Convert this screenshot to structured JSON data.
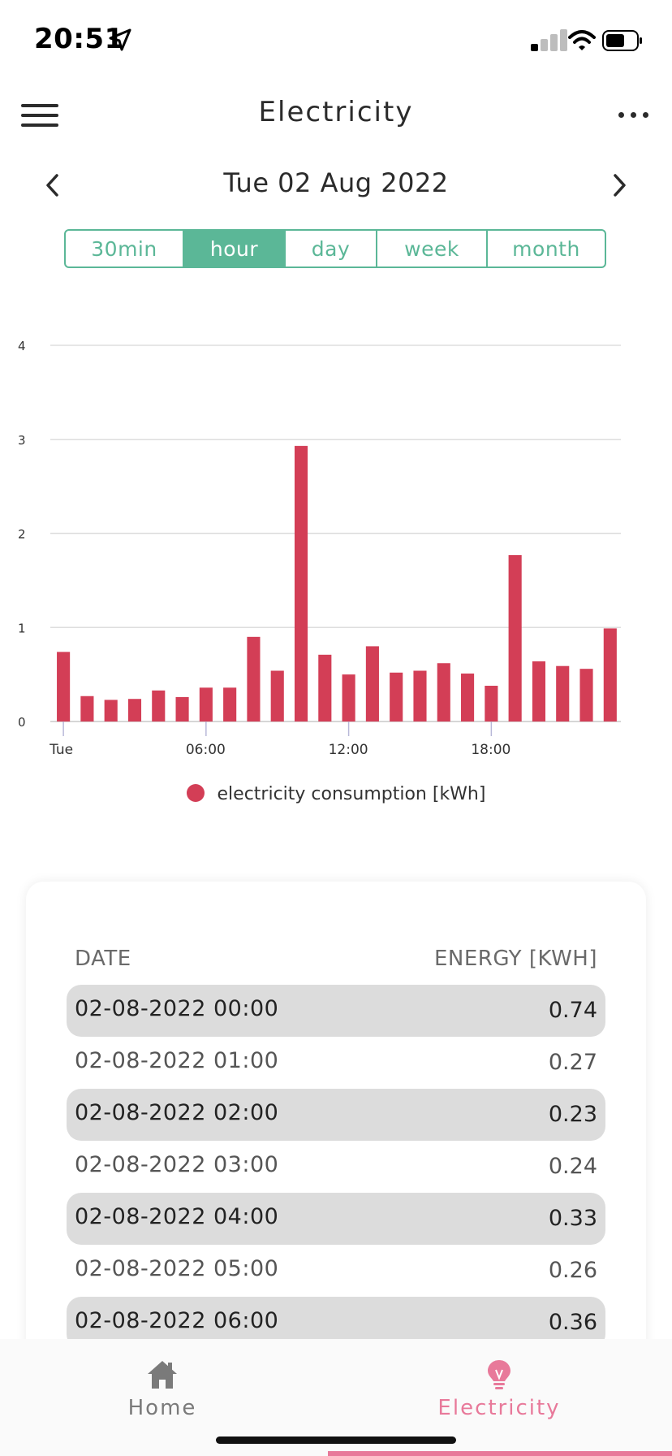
{
  "status_bar": {
    "time": "20:51",
    "location_icon": "location-arrow-icon",
    "signal_icon": "cell-signal-icon",
    "wifi_icon": "wifi-icon",
    "battery_icon": "battery-icon"
  },
  "header": {
    "title": "Electricity",
    "menu_icon": "hamburger-menu-icon",
    "more_icon": "more-options-icon"
  },
  "date_nav": {
    "date": "Tue 02 Aug 2022",
    "prev_icon": "chevron-left-icon",
    "next_icon": "chevron-right-icon"
  },
  "tabs": [
    {
      "label": "30min",
      "active": false
    },
    {
      "label": "hour",
      "active": true
    },
    {
      "label": "day",
      "active": false
    },
    {
      "label": "week",
      "active": false
    },
    {
      "label": "month",
      "active": false
    }
  ],
  "chart_data": {
    "type": "bar",
    "x": [
      "00:00",
      "01:00",
      "02:00",
      "03:00",
      "04:00",
      "05:00",
      "06:00",
      "07:00",
      "08:00",
      "09:00",
      "10:00",
      "11:00",
      "12:00",
      "13:00",
      "14:00",
      "15:00",
      "16:00",
      "17:00",
      "18:00",
      "19:00",
      "20:00",
      "21:00",
      "22:00",
      "23:00"
    ],
    "x_tick_labels": [
      {
        "at": "00:00",
        "label": "Tue"
      },
      {
        "at": "06:00",
        "label": "06:00"
      },
      {
        "at": "12:00",
        "label": "12:00"
      },
      {
        "at": "18:00",
        "label": "18:00"
      }
    ],
    "series": [
      {
        "name": "electricity consumption [kWh]",
        "color": "#d33e56",
        "values": [
          0.74,
          0.27,
          0.23,
          0.24,
          0.33,
          0.26,
          0.36,
          0.36,
          0.9,
          0.54,
          2.93,
          0.71,
          0.5,
          0.8,
          0.52,
          0.54,
          0.62,
          0.51,
          0.38,
          1.77,
          0.64,
          0.59,
          0.56,
          0.99
        ]
      }
    ],
    "ylim": [
      0,
      4
    ],
    "y_ticks": [
      0,
      1,
      2,
      3,
      4
    ],
    "grid": true,
    "legend": "bottom-center"
  },
  "table": {
    "headers": {
      "date": "DATE",
      "energy": "ENERGY [KWH]"
    },
    "rows": [
      {
        "date": "02-08-2022 00:00",
        "energy": "0.74"
      },
      {
        "date": "02-08-2022 01:00",
        "energy": "0.27"
      },
      {
        "date": "02-08-2022 02:00",
        "energy": "0.23"
      },
      {
        "date": "02-08-2022 03:00",
        "energy": "0.24"
      },
      {
        "date": "02-08-2022 04:00",
        "energy": "0.33"
      },
      {
        "date": "02-08-2022 05:00",
        "energy": "0.26"
      },
      {
        "date": "02-08-2022 06:00",
        "energy": "0.36"
      }
    ]
  },
  "bottom_nav": {
    "home": {
      "label": "Home",
      "icon": "home-icon"
    },
    "electricity": {
      "label": "Electricity",
      "icon": "lightbulb-icon",
      "active": true
    }
  },
  "colors": {
    "accent_green": "#5bb797",
    "bar_red": "#d33e56",
    "active_pink": "#e8799a"
  }
}
